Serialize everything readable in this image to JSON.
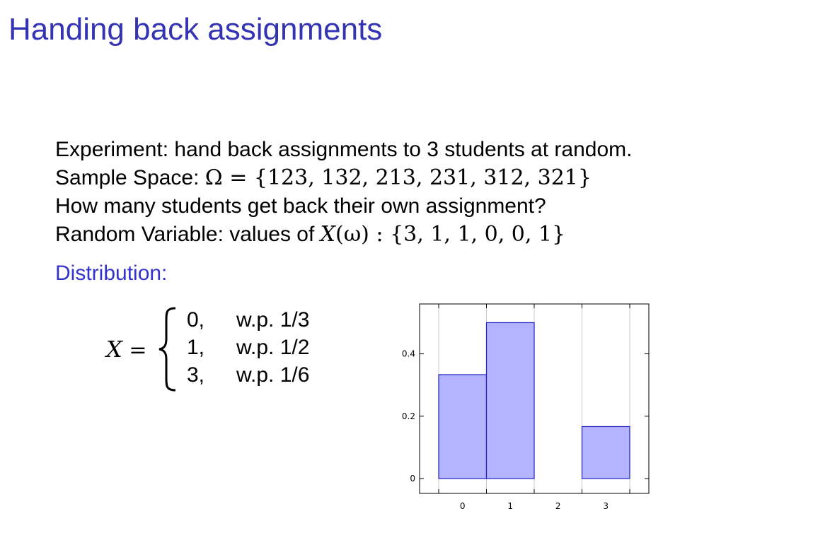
{
  "slide": {
    "title": "Handing back assignments",
    "lines": [
      "Experiment: hand back assignments to 3 students at random.",
      "Sample Space: ",
      "How many students get back their own assignment?",
      "Random Variable: values of "
    ],
    "sample_space_math": "Ω = {123, 132, 213, 231, 312, 321}",
    "rv_symbol": "X",
    "rv_math": "(ω) : {3, 1, 1, 0, 0, 1}",
    "section_label": "Distribution:"
  },
  "distribution": {
    "variable": "X",
    "equals": " =",
    "cases": [
      {
        "value": "0,",
        "prob": "w.p. 1/3"
      },
      {
        "value": "1,",
        "prob": "w.p. 1/2"
      },
      {
        "value": "3,",
        "prob": "w.p. 1/6"
      }
    ]
  },
  "colors": {
    "title": "#3333b3",
    "section_label": "#3333cc",
    "bar_fill": "#b3b3ff",
    "bar_stroke": "#2020c0"
  },
  "chart_data": {
    "type": "bar",
    "categories": [
      "0",
      "1",
      "2",
      "3"
    ],
    "values": [
      0.3333,
      0.5,
      0,
      0.1667
    ],
    "y_ticks": [
      "0",
      "0.2",
      "0.4"
    ],
    "ylim": [
      0,
      0.56
    ],
    "grid": "vertical",
    "title": "",
    "xlabel": "",
    "ylabel": ""
  }
}
